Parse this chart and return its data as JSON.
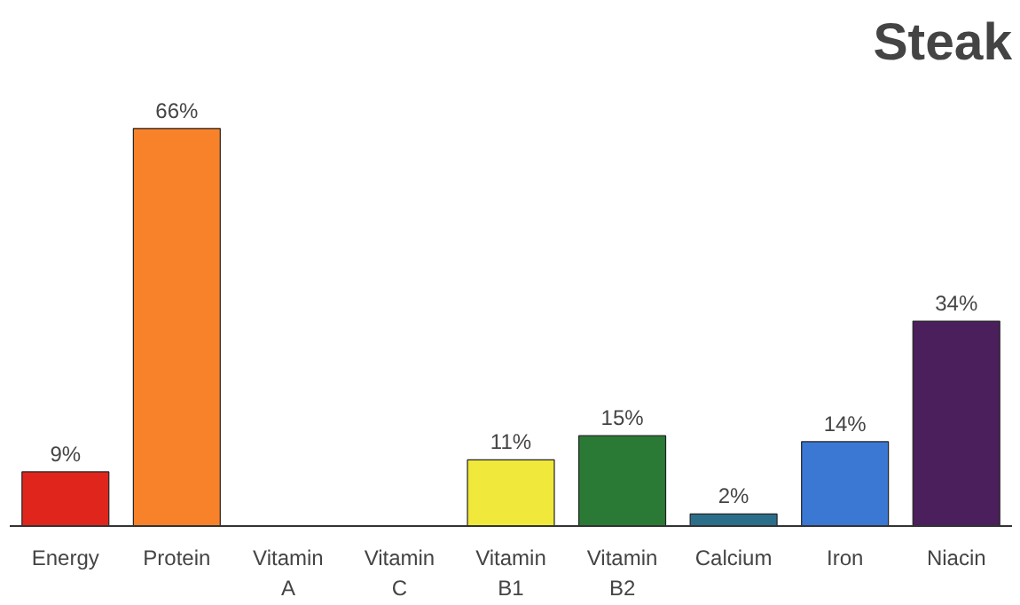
{
  "chart_data": {
    "type": "bar",
    "title": "Steak",
    "categories": [
      "Energy",
      "Protein",
      "Vitamin\nA",
      "Vitamin\nC",
      "Vitamin\nB1",
      "Vitamin\nB2",
      "Calcium",
      "Iron",
      "Niacin"
    ],
    "values": [
      9,
      66,
      null,
      null,
      11,
      15,
      2,
      14,
      34
    ],
    "value_labels": [
      "9%",
      "66%",
      null,
      null,
      "11%",
      "15%",
      "2%",
      "14%",
      "34%"
    ],
    "colors": [
      "#e0261c",
      "#f7822a",
      "#000000",
      "#000000",
      "#f0e83a",
      "#2a7a35",
      "#2b6e8a",
      "#3a78d4",
      "#4a1f5c"
    ],
    "grid": false
  }
}
